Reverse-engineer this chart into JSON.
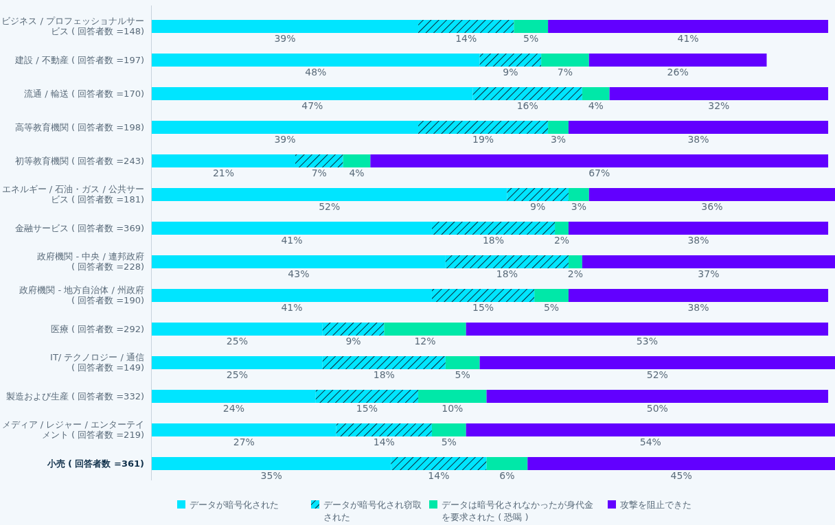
{
  "chart_data": {
    "type": "bar",
    "orientation": "horizontal",
    "stacked": true,
    "legend": "bottom",
    "tick_labels": "y",
    "categories": [
      "ビジネス / プロフェッショナルサービス ( 回答者数 =148)",
      "建設 / 不動産 ( 回答者数 =197)",
      "流通 / 輸送 ( 回答者数 =170)",
      "高等教育機関 ( 回答者数 =198)",
      "初等教育機関 ( 回答者数 =243)",
      "エネルギー / 石油・ガス / 公共サービス ( 回答者数 =181)",
      "金融サービス ( 回答者数 =369)",
      "政府機関 - 中央 / 連邦政府 ( 回答者数 =228)",
      "政府機関 - 地方自治体 / 州政府 ( 回答者数 =190)",
      "医療 ( 回答者数 =292)",
      "IT/ テクノロジー / 通信 ( 回答者数 =149)",
      "製造および生産 ( 回答者数 =332)",
      "メディア / レジャー / エンターテイメント ( 回答者数 =219)",
      "小売 ( 回答者数 =361)"
    ],
    "series": [
      {
        "name": "データが暗号化された",
        "color": "#00e5ff",
        "values": [
          39,
          48,
          47,
          39,
          21,
          52,
          41,
          43,
          41,
          25,
          25,
          24,
          27,
          35
        ],
        "value_labels": [
          "39%",
          "48%",
          "47%",
          "39%",
          "21%",
          "52%",
          "41%",
          "43%",
          "41%",
          "25%",
          "25%",
          "24%",
          "27%",
          "35%"
        ]
      },
      {
        "name": "データが暗号化され窃取された",
        "color": "#00e5ff",
        "values": [
          14,
          9,
          16,
          19,
          7,
          9,
          18,
          18,
          15,
          9,
          18,
          15,
          14,
          14
        ],
        "value_labels": [
          "14%",
          "9%",
          "16%",
          "19%",
          "7%",
          "9%",
          "18%",
          "18%",
          "15%",
          "9%",
          "18%",
          "15%",
          "14%",
          "14%"
        ]
      },
      {
        "name": "データは暗号化されなかったが身代金を要求された ( 恐喝 )",
        "color": "#00e8a8",
        "values": [
          5,
          7,
          4,
          3,
          4,
          3,
          2,
          2,
          5,
          12,
          5,
          10,
          5,
          6
        ],
        "value_labels": [
          "5%",
          "7%",
          "4%",
          "3%",
          "4%",
          "3%",
          "2%",
          "2%",
          "5%",
          "12%",
          "5%",
          "10%",
          "5%",
          "6%"
        ]
      },
      {
        "name": "攻撃を阻止できた",
        "color": "#6200ff",
        "values": [
          41,
          26,
          32,
          38,
          67,
          36,
          38,
          37,
          38,
          53,
          52,
          50,
          54,
          45
        ],
        "value_labels": [
          "41%",
          "26%",
          "32%",
          "38%",
          "67%",
          "36%",
          "38%",
          "37%",
          "38%",
          "53%",
          "52%",
          "50%",
          "54%",
          "45%"
        ]
      }
    ]
  }
}
